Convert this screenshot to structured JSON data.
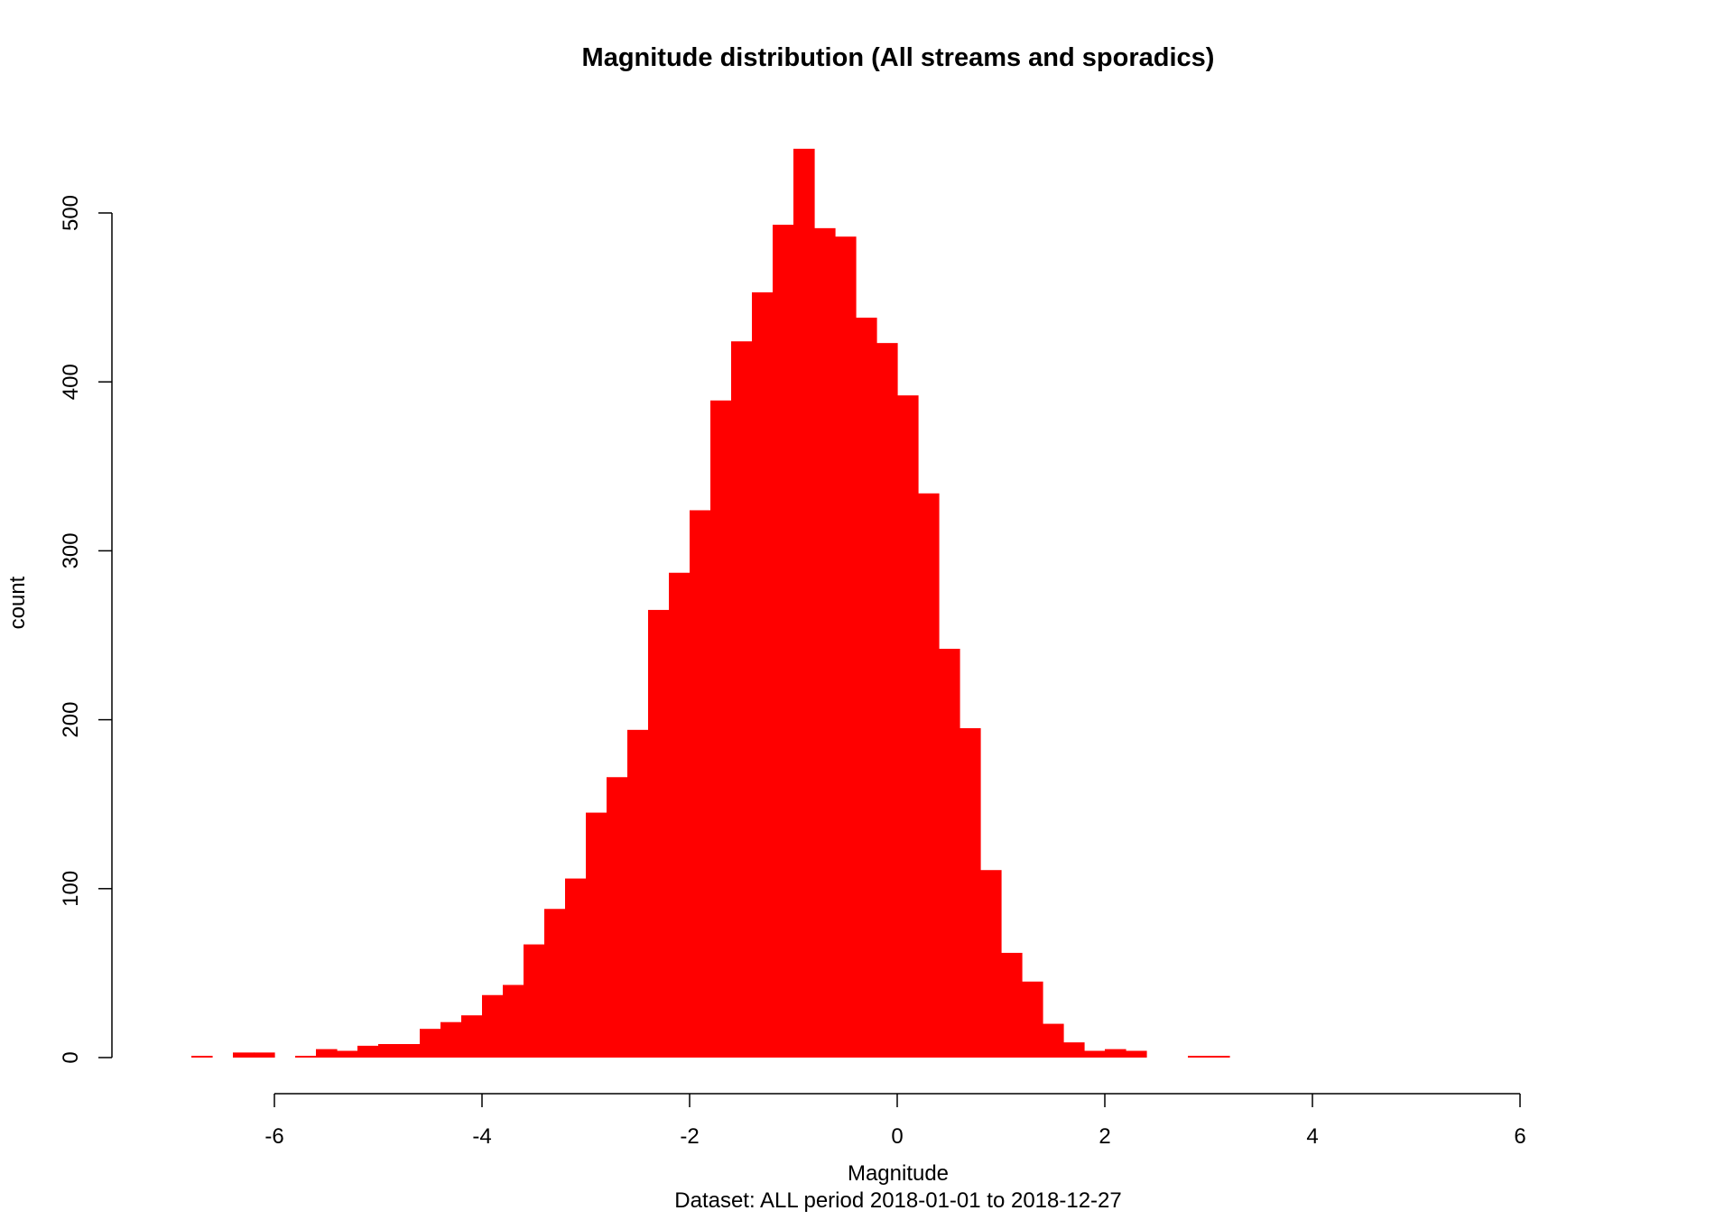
{
  "chart_data": {
    "type": "bar",
    "subtype": "histogram",
    "title": "Magnitude distribution (All streams and sporadics)",
    "xlabel": "Magnitude",
    "ylabel": "count",
    "subtitle": "Dataset: ALL period 2018-01-01 to 2018-12-27",
    "xlim": [
      -6,
      6
    ],
    "ylim": [
      0,
      500
    ],
    "x_ticks": [
      -6,
      -4,
      -2,
      0,
      2,
      4,
      6
    ],
    "y_ticks": [
      0,
      100,
      200,
      300,
      400,
      500
    ],
    "x_tick_labels": [
      "-6",
      "-4",
      "-2",
      "0",
      "2",
      "4",
      "6"
    ],
    "y_tick_labels": [
      "0",
      "100",
      "200",
      "300",
      "400",
      "500"
    ],
    "bin_width": 0.2,
    "bar_color": "#ff0000",
    "grid": false,
    "legend": "none",
    "bins": [
      {
        "x0": -6.8,
        "x1": -6.6,
        "count": 1
      },
      {
        "x0": -6.4,
        "x1": -6.2,
        "count": 3
      },
      {
        "x0": -6.2,
        "x1": -6.0,
        "count": 3
      },
      {
        "x0": -5.8,
        "x1": -5.6,
        "count": 1
      },
      {
        "x0": -5.6,
        "x1": -5.4,
        "count": 5
      },
      {
        "x0": -5.4,
        "x1": -5.2,
        "count": 4
      },
      {
        "x0": -5.2,
        "x1": -5.0,
        "count": 7
      },
      {
        "x0": -5.0,
        "x1": -4.8,
        "count": 8
      },
      {
        "x0": -4.8,
        "x1": -4.6,
        "count": 8
      },
      {
        "x0": -4.6,
        "x1": -4.4,
        "count": 17
      },
      {
        "x0": -4.4,
        "x1": -4.2,
        "count": 21
      },
      {
        "x0": -4.2,
        "x1": -4.0,
        "count": 25
      },
      {
        "x0": -4.0,
        "x1": -3.8,
        "count": 37
      },
      {
        "x0": -3.8,
        "x1": -3.6,
        "count": 43
      },
      {
        "x0": -3.6,
        "x1": -3.4,
        "count": 67
      },
      {
        "x0": -3.4,
        "x1": -3.2,
        "count": 88
      },
      {
        "x0": -3.2,
        "x1": -3.0,
        "count": 106
      },
      {
        "x0": -3.0,
        "x1": -2.8,
        "count": 145
      },
      {
        "x0": -2.8,
        "x1": -2.6,
        "count": 166
      },
      {
        "x0": -2.6,
        "x1": -2.4,
        "count": 194
      },
      {
        "x0": -2.4,
        "x1": -2.2,
        "count": 265
      },
      {
        "x0": -2.2,
        "x1": -2.0,
        "count": 287
      },
      {
        "x0": -2.0,
        "x1": -1.8,
        "count": 324
      },
      {
        "x0": -1.8,
        "x1": -1.6,
        "count": 389
      },
      {
        "x0": -1.6,
        "x1": -1.4,
        "count": 424
      },
      {
        "x0": -1.4,
        "x1": -1.2,
        "count": 453
      },
      {
        "x0": -1.2,
        "x1": -1.0,
        "count": 493
      },
      {
        "x0": -1.0,
        "x1": -0.8,
        "count": 538
      },
      {
        "x0": -0.8,
        "x1": -0.6,
        "count": 491
      },
      {
        "x0": -0.6,
        "x1": -0.4,
        "count": 486
      },
      {
        "x0": -0.4,
        "x1": -0.2,
        "count": 438
      },
      {
        "x0": -0.2,
        "x1": 0.0,
        "count": 423
      },
      {
        "x0": 0.0,
        "x1": 0.2,
        "count": 392
      },
      {
        "x0": 0.2,
        "x1": 0.4,
        "count": 334
      },
      {
        "x0": 0.4,
        "x1": 0.6,
        "count": 242
      },
      {
        "x0": 0.6,
        "x1": 0.8,
        "count": 195
      },
      {
        "x0": 0.8,
        "x1": 1.0,
        "count": 111
      },
      {
        "x0": 1.0,
        "x1": 1.2,
        "count": 62
      },
      {
        "x0": 1.2,
        "x1": 1.4,
        "count": 45
      },
      {
        "x0": 1.4,
        "x1": 1.6,
        "count": 20
      },
      {
        "x0": 1.6,
        "x1": 1.8,
        "count": 9
      },
      {
        "x0": 1.8,
        "x1": 2.0,
        "count": 4
      },
      {
        "x0": 2.0,
        "x1": 2.2,
        "count": 5
      },
      {
        "x0": 2.2,
        "x1": 2.4,
        "count": 4
      },
      {
        "x0": 2.8,
        "x1": 3.0,
        "count": 1
      },
      {
        "x0": 3.0,
        "x1": 3.2,
        "count": 1
      }
    ]
  }
}
